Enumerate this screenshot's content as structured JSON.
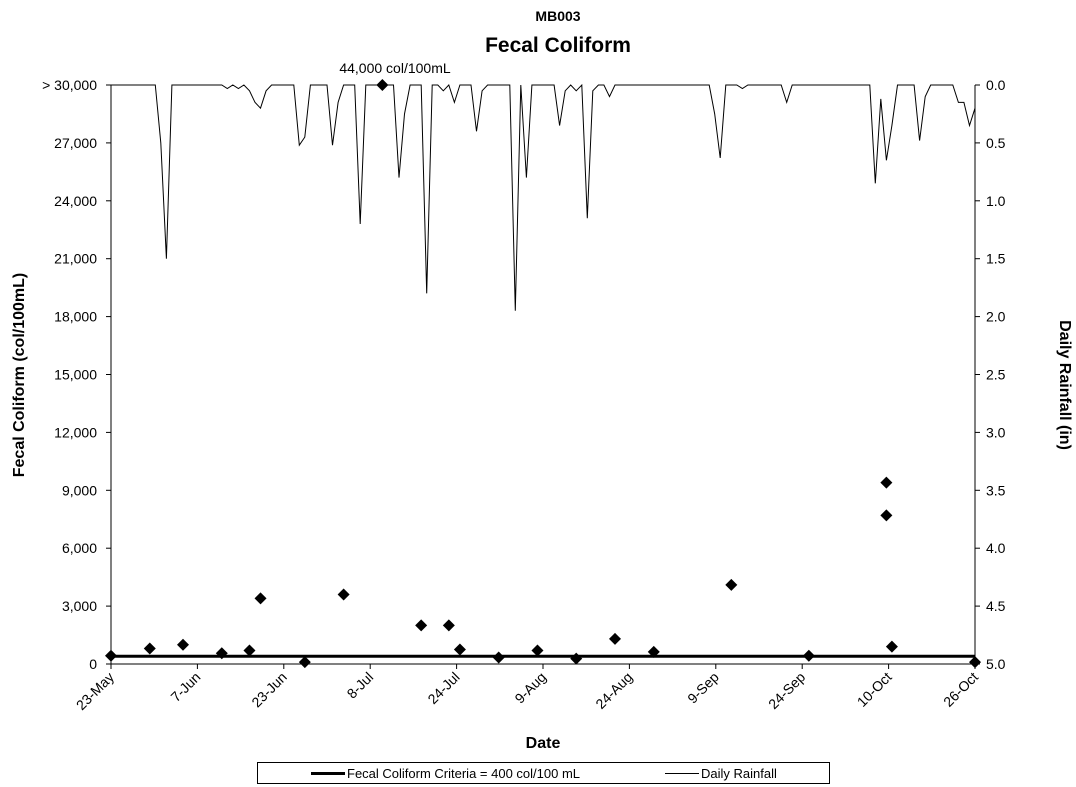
{
  "chart_data": {
    "type": "scatter",
    "subtitle": "MB003",
    "title": "Fecal Coliform",
    "xlabel": "Date",
    "ylabel": "Fecal Coliform (col/100mL)",
    "y2label": "Daily Rainfall (in)",
    "x_tick_labels": [
      "23-May",
      "7-Jun",
      "23-Jun",
      "8-Jul",
      "24-Jul",
      "9-Aug",
      "24-Aug",
      "9-Sep",
      "24-Sep",
      "10-Oct",
      "26-Oct"
    ],
    "xlim": [
      "2000-05-23",
      "2000-10-26"
    ],
    "y_tick_labels": [
      "0",
      "3,000",
      "6,000",
      "9,000",
      "12,000",
      "15,000",
      "18,000",
      "21,000",
      "24,000",
      "27,000",
      "> 30,000"
    ],
    "ylim": [
      0,
      30000
    ],
    "y2_tick_labels": [
      "0.0",
      "0.5",
      "1.0",
      "1.5",
      "2.0",
      "2.5",
      "3.0",
      "3.5",
      "4.0",
      "4.5",
      "5.0"
    ],
    "y2lim": [
      0,
      5
    ],
    "y2_inverted": true,
    "criteria_value": 400,
    "annotation": "44,000 col/100mL",
    "legend": [
      "Fecal Coliform Criteria = 400 col/100 mL",
      "Daily Rainfall"
    ],
    "legend_position": "bottom",
    "series": [
      {
        "points": [
          {
            "x": "2000-05-23",
            "y": 430
          },
          {
            "x": "2000-05-30",
            "y": 800
          },
          {
            "x": "2000-06-05",
            "y": 1000
          },
          {
            "x": "2000-06-12",
            "y": 560
          },
          {
            "x": "2000-06-17",
            "y": 700
          },
          {
            "x": "2000-06-19",
            "y": 3400
          },
          {
            "x": "2000-06-27",
            "y": 100
          },
          {
            "x": "2000-07-04",
            "y": 3600
          },
          {
            "x": "2000-07-11",
            "y": 30000
          },
          {
            "x": "2000-07-18",
            "y": 2000
          },
          {
            "x": "2000-07-23",
            "y": 2000
          },
          {
            "x": "2000-07-25",
            "y": 750
          },
          {
            "x": "2000-08-01",
            "y": 340
          },
          {
            "x": "2000-08-08",
            "y": 700
          },
          {
            "x": "2000-08-15",
            "y": 280
          },
          {
            "x": "2000-08-22",
            "y": 1300
          },
          {
            "x": "2000-08-29",
            "y": 630
          },
          {
            "x": "2000-09-12",
            "y": 4100
          },
          {
            "x": "2000-09-26",
            "y": 430
          },
          {
            "x": "2000-10-10",
            "y": 9400
          },
          {
            "x": "2000-10-10",
            "y": 7700
          },
          {
            "x": "2000-10-11",
            "y": 900
          },
          {
            "x": "2000-10-26",
            "y": 100
          }
        ]
      },
      {
        "name": "Daily Rainfall",
        "points": [
          {
            "x": "2000-05-23",
            "y": 0
          },
          {
            "x": "2000-05-31",
            "y": 0
          },
          {
            "x": "2000-06-01",
            "y": 0.5
          },
          {
            "x": "2000-06-02",
            "y": 1.5
          },
          {
            "x": "2000-06-03",
            "y": 0
          },
          {
            "x": "2000-06-12",
            "y": 0
          },
          {
            "x": "2000-06-13",
            "y": 0.03
          },
          {
            "x": "2000-06-14",
            "y": 0
          },
          {
            "x": "2000-06-15",
            "y": 0.03
          },
          {
            "x": "2000-06-16",
            "y": 0
          },
          {
            "x": "2000-06-17",
            "y": 0.05
          },
          {
            "x": "2000-06-18",
            "y": 0.15
          },
          {
            "x": "2000-06-19",
            "y": 0.2
          },
          {
            "x": "2000-06-20",
            "y": 0.05
          },
          {
            "x": "2000-06-21",
            "y": 0
          },
          {
            "x": "2000-06-25",
            "y": 0
          },
          {
            "x": "2000-06-26",
            "y": 0.52
          },
          {
            "x": "2000-06-27",
            "y": 0.45
          },
          {
            "x": "2000-06-28",
            "y": 0
          },
          {
            "x": "2000-07-01",
            "y": 0
          },
          {
            "x": "2000-07-02",
            "y": 0.52
          },
          {
            "x": "2000-07-03",
            "y": 0.15
          },
          {
            "x": "2000-07-04",
            "y": 0
          },
          {
            "x": "2000-07-06",
            "y": 0
          },
          {
            "x": "2000-07-07",
            "y": 1.2
          },
          {
            "x": "2000-07-08",
            "y": 0
          },
          {
            "x": "2000-07-13",
            "y": 0
          },
          {
            "x": "2000-07-14",
            "y": 0.8
          },
          {
            "x": "2000-07-15",
            "y": 0.25
          },
          {
            "x": "2000-07-16",
            "y": 0
          },
          {
            "x": "2000-07-18",
            "y": 0
          },
          {
            "x": "2000-07-19",
            "y": 1.8
          },
          {
            "x": "2000-07-20",
            "y": 0
          },
          {
            "x": "2000-07-21",
            "y": 0
          },
          {
            "x": "2000-07-22",
            "y": 0.05
          },
          {
            "x": "2000-07-23",
            "y": 0
          },
          {
            "x": "2000-07-24",
            "y": 0.15
          },
          {
            "x": "2000-07-25",
            "y": 0
          },
          {
            "x": "2000-07-27",
            "y": 0
          },
          {
            "x": "2000-07-28",
            "y": 0.4
          },
          {
            "x": "2000-07-29",
            "y": 0.05
          },
          {
            "x": "2000-07-30",
            "y": 0
          },
          {
            "x": "2000-08-03",
            "y": 0
          },
          {
            "x": "2000-08-04",
            "y": 1.95
          },
          {
            "x": "2000-08-05",
            "y": 0
          },
          {
            "x": "2000-08-06",
            "y": 0.8
          },
          {
            "x": "2000-08-07",
            "y": 0
          },
          {
            "x": "2000-08-11",
            "y": 0
          },
          {
            "x": "2000-08-12",
            "y": 0.35
          },
          {
            "x": "2000-08-13",
            "y": 0.05
          },
          {
            "x": "2000-08-14",
            "y": 0
          },
          {
            "x": "2000-08-15",
            "y": 0.05
          },
          {
            "x": "2000-08-16",
            "y": 0
          },
          {
            "x": "2000-08-17",
            "y": 1.15
          },
          {
            "x": "2000-08-18",
            "y": 0.05
          },
          {
            "x": "2000-08-19",
            "y": 0
          },
          {
            "x": "2000-08-20",
            "y": 0
          },
          {
            "x": "2000-08-21",
            "y": 0.1
          },
          {
            "x": "2000-08-22",
            "y": 0
          },
          {
            "x": "2000-09-08",
            "y": 0
          },
          {
            "x": "2000-09-09",
            "y": 0.25
          },
          {
            "x": "2000-09-10",
            "y": 0.63
          },
          {
            "x": "2000-09-11",
            "y": 0
          },
          {
            "x": "2000-09-13",
            "y": 0
          },
          {
            "x": "2000-09-14",
            "y": 0.03
          },
          {
            "x": "2000-09-15",
            "y": 0
          },
          {
            "x": "2000-09-21",
            "y": 0
          },
          {
            "x": "2000-09-22",
            "y": 0.15
          },
          {
            "x": "2000-09-23",
            "y": 0
          },
          {
            "x": "2000-10-07",
            "y": 0
          },
          {
            "x": "2000-10-08",
            "y": 0.85
          },
          {
            "x": "2000-10-09",
            "y": 0.12
          },
          {
            "x": "2000-10-10",
            "y": 0.65
          },
          {
            "x": "2000-10-11",
            "y": 0.35
          },
          {
            "x": "2000-10-12",
            "y": 0
          },
          {
            "x": "2000-10-15",
            "y": 0
          },
          {
            "x": "2000-10-16",
            "y": 0.48
          },
          {
            "x": "2000-10-17",
            "y": 0.1
          },
          {
            "x": "2000-10-18",
            "y": 0
          },
          {
            "x": "2000-10-20",
            "y": 0
          },
          {
            "x": "2000-10-21",
            "y": 0
          },
          {
            "x": "2000-10-22",
            "y": 0
          },
          {
            "x": "2000-10-23",
            "y": 0.15
          },
          {
            "x": "2000-10-24",
            "y": 0.15
          },
          {
            "x": "2000-10-25",
            "y": 0.35
          },
          {
            "x": "2000-10-26",
            "y": 0.2
          }
        ]
      }
    ]
  }
}
